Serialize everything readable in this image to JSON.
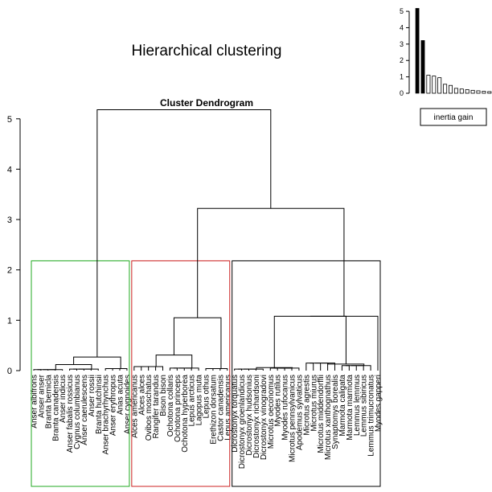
{
  "chart_data": [
    {
      "type": "bar",
      "role": "inertia-gain-inset",
      "values": [
        5.18,
        3.22,
        1.1,
        1.05,
        0.95,
        0.55,
        0.48,
        0.3,
        0.26,
        0.22,
        0.18,
        0.15,
        0.12,
        0.1,
        0.08
      ],
      "highlight_count": 2,
      "ylim": [
        0,
        5.2
      ],
      "yticks": [
        "0",
        "1",
        "2",
        "3",
        "4",
        "5"
      ],
      "legend": "inertia gain"
    },
    {
      "type": "dendrogram",
      "title": "Hierarchical clustering",
      "subtitle": "Cluster Dendrogram",
      "ylim": [
        0,
        5.3
      ],
      "yticks": [
        "0",
        "1",
        "2",
        "3",
        "4",
        "5"
      ],
      "clusters": [
        {
          "color": "#22aa22",
          "leaves": [
            "Anser albifrons",
            "Anser anser",
            "Branta bernicla",
            "Branta canadensis",
            "Anser indicus",
            "Anser fabalis rossicus",
            "Cygnus columbianus",
            "Anser caerulescens",
            "Anser rossii",
            "Branta hutchinsii",
            "Anser brachyrhynchus",
            "Anser erythropus",
            "Anas acuta",
            "Anser cygnoides"
          ],
          "merges": [
            [
              0.02,
              0.03,
              0.04
            ],
            [
              0.12,
              0.06
            ],
            [
              0.27
            ]
          ]
        },
        {
          "color": "#cc2222",
          "leaves": [
            "Alces americanus",
            "Alces alces",
            "Ovibos moschatus",
            "Rangifer tarandus",
            "Bison bison",
            "Ochotona collaris",
            "Ochotona princeps",
            "Ochotona hyperborea",
            "Lepus arcticus",
            "Lagopus muta",
            "Lepus othus",
            "Erethizon dorsatum",
            "Castor canadensis",
            "Lepus americanus"
          ],
          "merges": [
            [
              0.08,
              0.05,
              0.04
            ],
            [
              0.31,
              0.14
            ],
            [
              1.05
            ]
          ]
        },
        {
          "color": "#000000",
          "leaves": [
            "Dicrostonyx torquatus",
            "Dicrostonyx groenlandicus",
            "Dicrostonyx hudsonius",
            "Dicrostonyx richardsoni",
            "Dicrostonyx vinogradovi",
            "Microtus oeconomus",
            "Myodes rutilus",
            "Myodes rufocanus",
            "Microtus pennsylvanicus",
            "Apodemus sylvaticus",
            "Microtus agrestis",
            "Microtus miurus",
            "Microtus middendorffii",
            "Microtus xanthognathus",
            "Synaptomys borealis",
            "Marmota caligata",
            "Marmota marmota",
            "Lemmus lemmus",
            "Lemmus sibiricus",
            "Lemmus trimucronatus",
            "Myodes gapperi"
          ],
          "merges": [
            [
              0.03,
              0.05,
              0.15,
              0.1,
              0.09
            ],
            [
              0.06,
              0.13,
              0.64,
              0.9
            ],
            [
              1.08
            ]
          ]
        }
      ],
      "top_merges": [
        3.22,
        5.18
      ]
    }
  ]
}
